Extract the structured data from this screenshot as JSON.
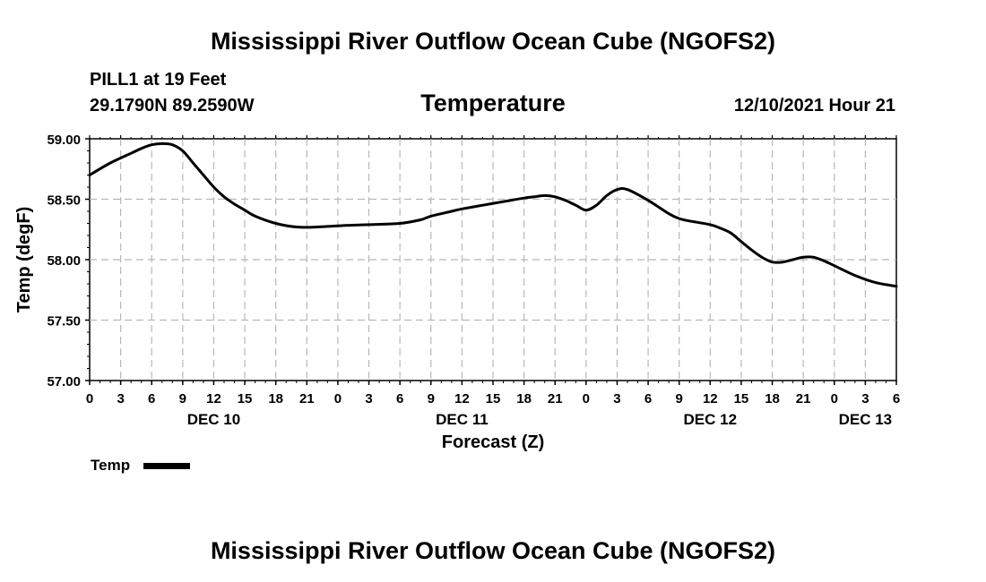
{
  "page_title": "Mississippi River Outflow Ocean Cube (NGOFS2)",
  "footer_title": "Mississippi River Outflow Ocean Cube (NGOFS2)",
  "station": {
    "name_depth": "PILL1 at 19 Feet",
    "coords": "29.1790N  89.2590W",
    "timestamp": "12/10/2021 Hour 21"
  },
  "chart_data": {
    "type": "line",
    "title": "Temperature",
    "xlabel": "Forecast (Z)",
    "ylabel": "Temp (degF)",
    "ylim": [
      57.0,
      59.0
    ],
    "xlim_hours": [
      0,
      78
    ],
    "grid": true,
    "x_tick_hours": [
      0,
      3,
      6,
      9,
      12,
      15,
      18,
      21,
      24,
      27,
      30,
      33,
      36,
      39,
      42,
      45,
      48,
      51,
      54,
      57,
      60,
      63,
      66,
      69,
      72,
      75,
      78
    ],
    "x_tick_labels": [
      "0",
      "3",
      "6",
      "9",
      "12",
      "15",
      "18",
      "21",
      "0",
      "3",
      "6",
      "9",
      "12",
      "15",
      "18",
      "21",
      "0",
      "3",
      "6",
      "9",
      "12",
      "15",
      "18",
      "21",
      "0",
      "3",
      "6"
    ],
    "y_ticks": [
      57.0,
      57.5,
      58.0,
      58.5,
      59.0
    ],
    "y_tick_labels": [
      "57.00",
      "57.50",
      "58.00",
      "58.50",
      "59.00"
    ],
    "date_labels": [
      {
        "label": "DEC 10",
        "hour": 12
      },
      {
        "label": "DEC 11",
        "hour": 36
      },
      {
        "label": "DEC 12",
        "hour": 60
      },
      {
        "label": "DEC 13",
        "hour": 75
      }
    ],
    "legend": {
      "label": "Temp",
      "position": "bottom-left"
    },
    "series": [
      {
        "name": "Temp",
        "color": "#000000",
        "x": [
          0,
          2,
          4,
          5,
          6,
          7,
          8,
          9,
          10,
          11,
          12,
          13,
          14,
          15,
          16,
          18,
          20,
          22,
          24,
          27,
          30,
          32,
          33,
          35,
          36,
          38,
          40,
          42,
          43,
          44,
          45,
          46,
          47,
          48,
          49,
          50,
          51,
          52,
          54,
          56,
          57,
          58,
          60,
          61,
          62,
          63,
          64,
          65,
          66,
          67,
          68,
          69,
          70,
          71,
          72,
          74,
          76,
          78
        ],
        "values": [
          58.7,
          58.8,
          58.88,
          58.92,
          58.95,
          58.96,
          58.95,
          58.9,
          58.8,
          58.7,
          58.6,
          58.52,
          58.46,
          58.41,
          58.36,
          58.3,
          58.27,
          58.27,
          58.28,
          58.29,
          58.3,
          58.33,
          58.36,
          58.4,
          58.42,
          58.45,
          58.48,
          58.51,
          58.52,
          58.53,
          58.52,
          58.49,
          58.45,
          58.41,
          58.45,
          58.53,
          58.58,
          58.58,
          58.49,
          58.38,
          58.34,
          58.32,
          58.29,
          58.26,
          58.22,
          58.15,
          58.08,
          58.02,
          57.98,
          57.98,
          58.0,
          58.02,
          58.02,
          57.99,
          57.95,
          57.87,
          57.81,
          57.78
        ]
      }
    ]
  }
}
